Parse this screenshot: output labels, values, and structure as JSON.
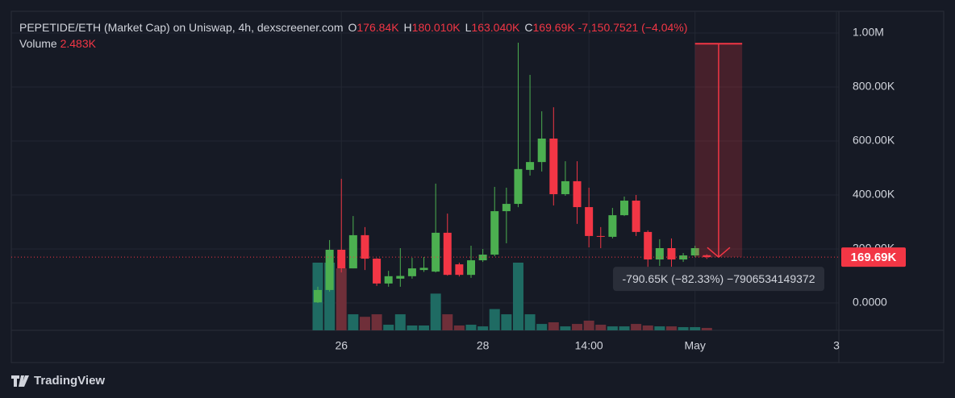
{
  "chart_data": {
    "type": "candlestick",
    "legend": {
      "title": "PEPETIDE/ETH (Market Cap) on Uniswap, 4h, dexscreener.com",
      "ohlc": [
        {
          "key": "O",
          "value": "176.84K"
        },
        {
          "key": "H",
          "value": "180.010K"
        },
        {
          "key": "L",
          "value": "163.040K"
        },
        {
          "key": "C",
          "value": "169.69K"
        }
      ],
      "change": "-7,150.7521 (−4.04%)",
      "volume_label": "Volume",
      "volume_value": "2.483K"
    },
    "x": [
      -2,
      -1,
      0,
      1,
      2,
      3,
      4,
      5,
      6,
      7,
      8,
      9,
      10,
      11,
      12,
      13,
      14,
      15,
      16,
      17,
      18,
      19,
      20,
      21,
      22,
      23,
      24,
      25,
      26,
      27,
      28,
      29,
      30,
      31
    ],
    "open": [
      2000,
      48000,
      197000,
      128000,
      251000,
      164000,
      72000,
      90000,
      99000,
      122000,
      116000,
      260000,
      143000,
      104000,
      158000,
      179000,
      340000,
      367000,
      493000,
      522000,
      609000,
      403000,
      451000,
      355000,
      248000,
      245000,
      325000,
      379000,
      263000,
      161000,
      203000,
      161000,
      176000,
      176840
    ],
    "high": [
      60000,
      233000,
      460000,
      322000,
      281000,
      166000,
      119000,
      203000,
      167000,
      170000,
      442000,
      331000,
      149000,
      212000,
      200000,
      430000,
      427000,
      964000,
      845000,
      710000,
      725000,
      525000,
      525000,
      427000,
      281000,
      352000,
      394000,
      400000,
      269000,
      236000,
      239000,
      185000,
      212000,
      180010
    ],
    "low": [
      0,
      42000,
      113000,
      128000,
      122000,
      63000,
      60000,
      60000,
      90000,
      115000,
      113000,
      101000,
      98000,
      93000,
      152000,
      173000,
      221000,
      355000,
      472000,
      487000,
      361000,
      397000,
      293000,
      206000,
      203000,
      239000,
      322000,
      248000,
      116000,
      137000,
      134000,
      152000,
      170000,
      163040
    ],
    "close": [
      48000,
      197000,
      128000,
      251000,
      164000,
      72000,
      99000,
      100000,
      128000,
      130000,
      260000,
      104000,
      104000,
      158000,
      179000,
      340000,
      367000,
      496000,
      522000,
      609000,
      403000,
      451000,
      355000,
      248000,
      245000,
      325000,
      379000,
      263000,
      161000,
      203000,
      161000,
      176000,
      203000,
      169690
    ],
    "volume": [
      70000,
      70000,
      64000,
      16600,
      14000,
      16600,
      5800,
      16600,
      5000,
      5000,
      38000,
      16600,
      5000,
      5800,
      4100,
      22000,
      16600,
      70000,
      16600,
      6600,
      8300,
      4100,
      6600,
      10000,
      5800,
      4100,
      4100,
      6600,
      5000,
      4100,
      4100,
      3300,
      3300,
      2483
    ],
    "up_color": "#4caf50",
    "down_color": "#f23645",
    "up_volume_color": "#1f6b63",
    "down_volume_color": "#6f2f39",
    "xlim": [
      -28,
      42.2
    ],
    "xticks": [
      {
        "value": 0,
        "label": "26"
      },
      {
        "value": 12,
        "label": "28"
      },
      {
        "value": 21,
        "label": "14:00"
      },
      {
        "value": 30,
        "label": "May"
      },
      {
        "value": 42,
        "label": "3"
      }
    ],
    "ylim": [
      -101500,
      1080600
    ],
    "yticks": [
      {
        "value": 0,
        "label": "0.0000"
      },
      {
        "value": 200000,
        "label": "200.00K"
      },
      {
        "value": 400000,
        "label": "400.00K"
      },
      {
        "value": 600000,
        "label": "600.00K"
      },
      {
        "value": 800000,
        "label": "800.00K"
      },
      {
        "value": 1000000,
        "label": "1.00M"
      }
    ],
    "volume_ylim": [
      0,
      330000
    ],
    "grid": true,
    "last_price_label": "169.69K",
    "measure": {
      "x": [
        30,
        34
      ],
      "from": 960340,
      "to": 169690,
      "label": "-790.65K (−82.33%) −7906534149372"
    },
    "branding": "TradingView"
  }
}
